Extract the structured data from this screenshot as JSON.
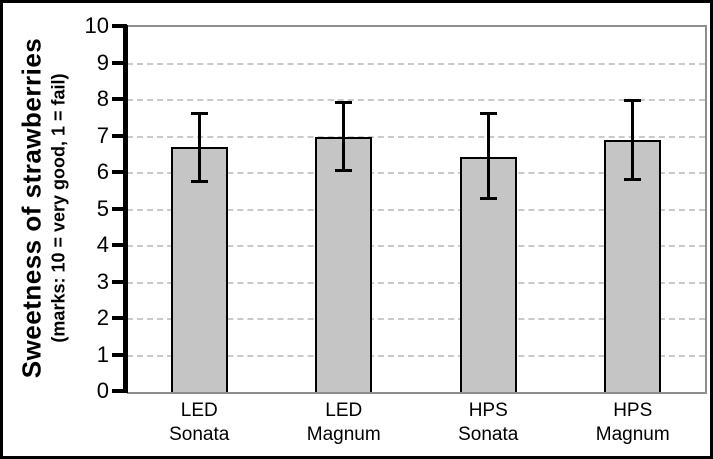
{
  "chart_data": {
    "type": "bar",
    "ylabel_main": "Sweetness of strawberries",
    "ylabel_sub": "(marks: 10 = very good, 1 = fail)",
    "categories": [
      "LED Sonata",
      "LED Magnum",
      "HPS Sonata",
      "HPS Magnum"
    ],
    "category_label_lines": [
      [
        "LED",
        "Sonata"
      ],
      [
        "LED",
        "Magnum"
      ],
      [
        "HPS",
        "Sonata"
      ],
      [
        "HPS",
        "Magnum"
      ]
    ],
    "values": [
      6.7,
      7.0,
      6.45,
      6.9
    ],
    "error_bars": {
      "upper": [
        7.65,
        7.95,
        7.65,
        8.0
      ],
      "lower": [
        5.75,
        6.05,
        5.3,
        5.8
      ]
    },
    "ylim": [
      0,
      10
    ],
    "yticks": [
      0,
      1,
      2,
      3,
      4,
      5,
      6,
      7,
      8,
      9,
      10
    ],
    "grid": {
      "horizontal": true,
      "style": "dashed"
    },
    "legend": "none",
    "colors": {
      "bar_fill": "#c5c5c5",
      "bar_border": "#000000",
      "gridline": "#c9c9c9",
      "plot_border": "#8e8e8e",
      "axis": "#000000",
      "background": "#ffffff",
      "outer_border": "#000000"
    }
  }
}
